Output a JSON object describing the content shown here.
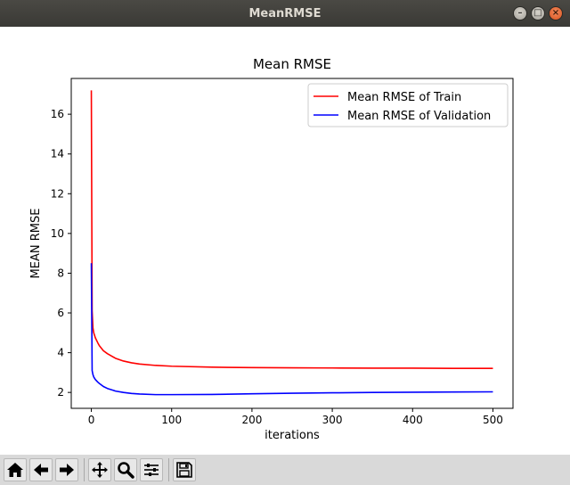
{
  "window": {
    "title": "MeanRMSE",
    "buttons": [
      "minimize",
      "maximize",
      "close"
    ]
  },
  "toolbar": {
    "items": [
      {
        "icon": "home-icon",
        "action": "home"
      },
      {
        "icon": "back-arrow-icon",
        "action": "back"
      },
      {
        "icon": "forward-arrow-icon",
        "action": "forward"
      },
      {
        "icon": "pan-icon",
        "action": "pan"
      },
      {
        "icon": "zoom-icon",
        "action": "zoom"
      },
      {
        "icon": "configure-subplots-icon",
        "action": "configure"
      },
      {
        "icon": "save-icon",
        "action": "save"
      }
    ]
  },
  "chart_data": {
    "type": "line",
    "title": "Mean RMSE",
    "xlabel": "iterations",
    "ylabel": "MEAN RMSE",
    "xlim": [
      -25,
      525
    ],
    "ylim": [
      1.2,
      17.8
    ],
    "xticks": [
      0,
      100,
      200,
      300,
      400,
      500
    ],
    "yticks": [
      2,
      4,
      6,
      8,
      10,
      12,
      14,
      16
    ],
    "grid": false,
    "legend_position": "top-right",
    "series": [
      {
        "name": "Mean RMSE of Train",
        "color": "#ff0000",
        "x": [
          0,
          1,
          2,
          3,
          5,
          8,
          10,
          15,
          20,
          30,
          40,
          50,
          60,
          80,
          100,
          150,
          200,
          250,
          300,
          350,
          400,
          450,
          500
        ],
        "y": [
          17.2,
          6.1,
          5.25,
          5.0,
          4.75,
          4.5,
          4.35,
          4.1,
          3.95,
          3.72,
          3.58,
          3.49,
          3.43,
          3.36,
          3.32,
          3.27,
          3.25,
          3.24,
          3.23,
          3.22,
          3.22,
          3.21,
          3.21
        ]
      },
      {
        "name": "Mean RMSE of Validation",
        "color": "#0000ff",
        "x": [
          0,
          1,
          2,
          3,
          5,
          8,
          10,
          15,
          20,
          30,
          40,
          50,
          60,
          80,
          100,
          150,
          200,
          250,
          300,
          350,
          400,
          450,
          500
        ],
        "y": [
          8.5,
          3.1,
          2.9,
          2.78,
          2.65,
          2.52,
          2.45,
          2.3,
          2.2,
          2.07,
          2.0,
          1.95,
          1.92,
          1.89,
          1.89,
          1.9,
          1.93,
          1.96,
          1.98,
          2.0,
          2.01,
          2.02,
          2.03
        ]
      }
    ]
  }
}
